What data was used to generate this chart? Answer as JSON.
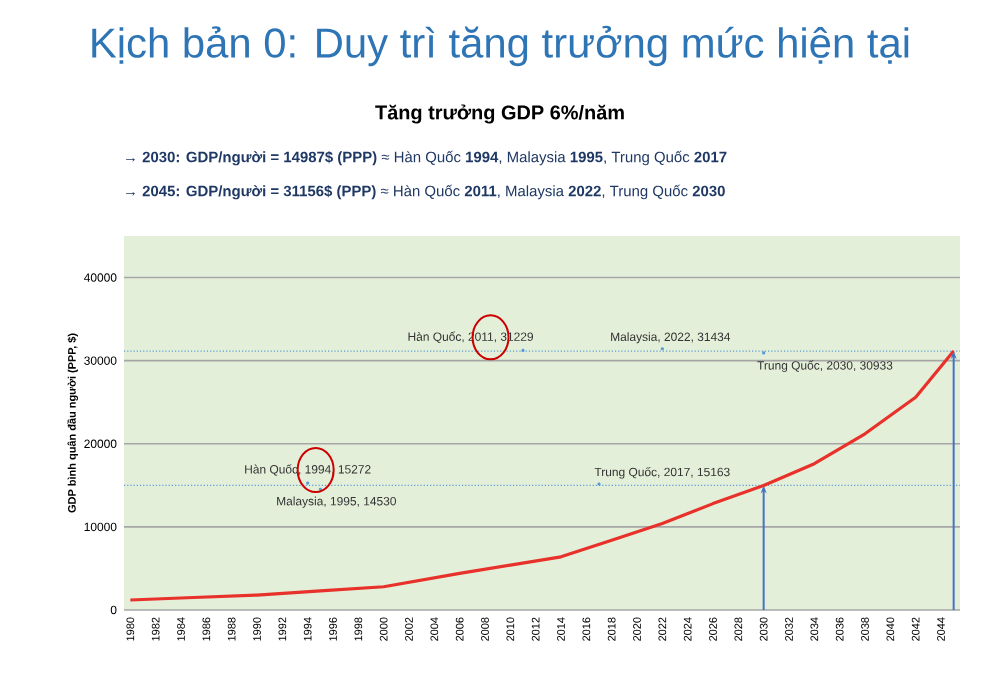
{
  "chart_data": {
    "type": "line",
    "title": "Kịch bản 0: Duy trì tăng trưởng mức hiện tại",
    "subtitle": "Tăng trưởng GDP 6%/năm",
    "ylabel": "GDP bình quân đầu người (PPP, $)",
    "x": [
      1980,
      1985,
      1990,
      1995,
      2000,
      2006,
      2010,
      2014,
      2018,
      2022,
      2026,
      2030,
      2034,
      2038,
      2042,
      2045
    ],
    "series": [
      {
        "color": "#e8312a",
        "values": [
          1200,
          1500,
          1800,
          2300,
          2800,
          4400,
          5400,
          6400,
          8400,
          10400,
          12800,
          14987,
          17600,
          21200,
          25600,
          31156
        ]
      }
    ],
    "xlim": [
      1979.5,
      2045.5
    ],
    "xticks": [
      1980,
      1982,
      1984,
      1986,
      1988,
      1990,
      1992,
      1994,
      1996,
      1998,
      2000,
      2002,
      2004,
      2006,
      2008,
      2010,
      2012,
      2014,
      2016,
      2018,
      2020,
      2022,
      2024,
      2026,
      2028,
      2030,
      2032,
      2034,
      2036,
      2038,
      2040,
      2042,
      2044
    ],
    "ylim": [
      0,
      45000
    ],
    "yticks": [
      0,
      10000,
      20000,
      30000,
      40000
    ],
    "grid": "y",
    "marker": "none",
    "line_style": "solid",
    "ref_lines": [
      {
        "axis": "y",
        "value": 14987,
        "color": "#5b9bd5",
        "line_style": "dotted"
      },
      {
        "axis": "y",
        "value": 31156,
        "color": "#5b9bd5",
        "line_style": "dotted"
      },
      {
        "axis": "x",
        "value": 2030,
        "color": "#4472c4",
        "line_style": "solid"
      },
      {
        "axis": "x",
        "value": 2045,
        "color": "#4472c4",
        "line_style": "solid"
      }
    ],
    "annotations": [
      "→ **2030: GDP/người = 14987$ (PPP)** ≈ Hàn Quốc **1994**, Malaysia **1995**, Trung Quốc **2017**",
      "→ **2045: GDP/người = 31156$ (PPP)** ≈ Hàn Quốc **2011**, Malaysia **2022**, Trung Quốc **2030**",
      {
        "text": "Hàn Quốc, 1994, 15272",
        "x": 1994,
        "y": 15272
      },
      {
        "text": "Malaysia, 1995, 14530",
        "x": 1995,
        "y": 14530
      },
      {
        "text": "Hàn Quốc, 2011, 31229",
        "x": 2011,
        "y": 31229
      },
      {
        "text": "Malaysia, 2022, 31434",
        "x": 2022,
        "y": 31434
      },
      {
        "text": "Trung Quốc, 2030, 30933",
        "x": 2030,
        "y": 30933
      },
      {
        "text": "Trung Quốc, 2017, 15163",
        "x": 2017,
        "y": 15163
      }
    ]
  }
}
